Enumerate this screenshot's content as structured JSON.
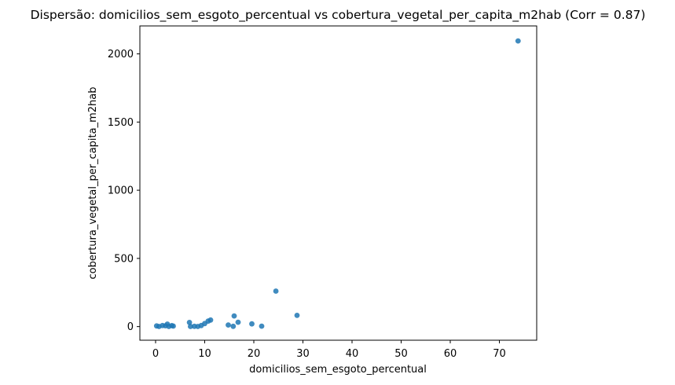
{
  "figure": {
    "background": "#ffffff"
  },
  "chart_data": {
    "type": "scatter",
    "title": "Dispersão: domicilios_sem_esgoto_percentual vs cobertura_vegetal_per_capita_m2hab (Corr = 0.87)",
    "xlabel": "domicilios_sem_esgoto_percentual",
    "ylabel": "cobertura_vegetal_per_capita_m2hab",
    "correlation": 0.87,
    "xlim": [
      -3.2,
      77.6
    ],
    "ylim": [
      -100,
      2205
    ],
    "xticks": [
      0,
      10,
      20,
      30,
      40,
      50,
      60,
      70
    ],
    "yticks": [
      0,
      500,
      1000,
      1500,
      2000
    ],
    "grid": false,
    "legend_position": "none",
    "marker_color": "#1f77b4",
    "marker_opacity": 0.85,
    "axis_color": "#000000",
    "points": [
      [
        0.2,
        5
      ],
      [
        0.7,
        1
      ],
      [
        1.4,
        8
      ],
      [
        2.0,
        6
      ],
      [
        2.4,
        18
      ],
      [
        2.7,
        1
      ],
      [
        3.3,
        7
      ],
      [
        3.6,
        4
      ],
      [
        6.9,
        30
      ],
      [
        7.1,
        1
      ],
      [
        7.9,
        2
      ],
      [
        8.6,
        1
      ],
      [
        9.3,
        8
      ],
      [
        10.0,
        22
      ],
      [
        10.7,
        40
      ],
      [
        11.2,
        48
      ],
      [
        14.8,
        12
      ],
      [
        15.8,
        2
      ],
      [
        16.0,
        78
      ],
      [
        16.8,
        32
      ],
      [
        19.6,
        20
      ],
      [
        21.6,
        3
      ],
      [
        24.5,
        260
      ],
      [
        28.8,
        82
      ],
      [
        73.8,
        2095
      ]
    ]
  }
}
